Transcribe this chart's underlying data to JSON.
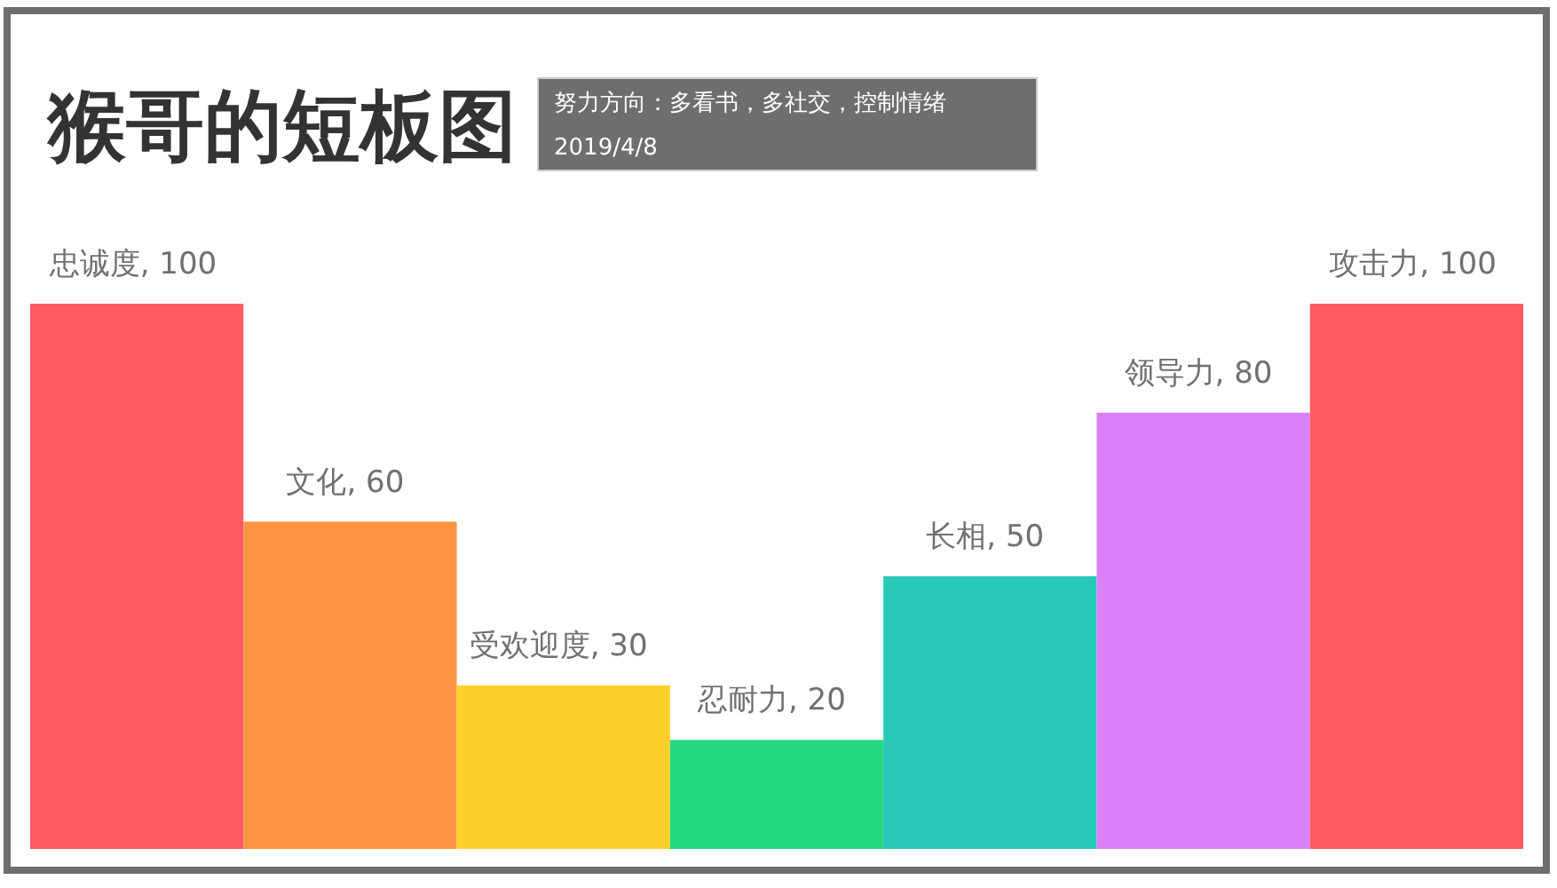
{
  "chart_data": {
    "type": "bar",
    "title": "猴哥的短板图",
    "subtitle": "努力方向：多看书，多社交，控制情绪",
    "annotations": [
      "2019/4/8"
    ],
    "categories": [
      "忠诚度",
      "文化",
      "受欢迎度",
      "忍耐力",
      "长相",
      "领导力",
      "攻击力"
    ],
    "values": [
      100,
      60,
      30,
      20,
      50,
      80,
      100
    ],
    "colors": [
      "#fe5b65",
      "#fe9443",
      "#fdd12c",
      "#26d97f",
      "#28c9b9",
      "#d97ff8",
      "#fe5b65"
    ],
    "value_labels": [
      ", 100",
      ", 60",
      ", 30",
      ", 20",
      ", 50",
      ", 80",
      ", 100"
    ],
    "ylim": [
      0,
      100
    ]
  }
}
